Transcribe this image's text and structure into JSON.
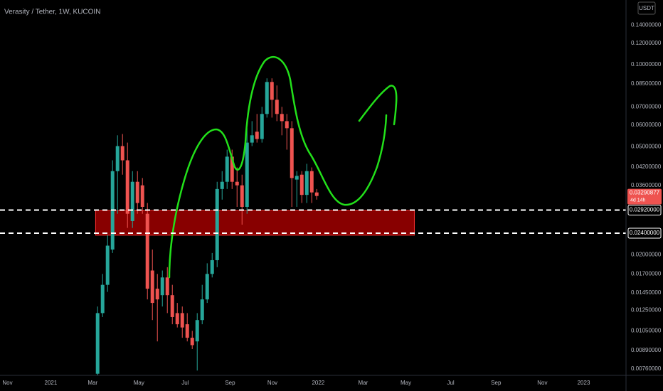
{
  "chart_data": {
    "type": "candlestick",
    "title": "Verasity / Tether, 1W, KUCOIN",
    "currency": "USDT",
    "up_color": "#26a69a",
    "down_color": "#ef5350",
    "log_scale": true,
    "grid": false,
    "open": [
      0.0073,
      0.0122,
      0.0155,
      0.0209,
      0.0406,
      0.0502,
      0.0445,
      0.0266,
      0.0371,
      0.036,
      0.0283,
      0.0175,
      0.015,
      0.0142,
      0.0165,
      0.0142,
      0.0122,
      0.0122,
      0.0111,
      0.0099,
      0.0096,
      0.0115,
      0.0137,
      0.017,
      0.0191,
      0.0349,
      0.0371,
      0.0459,
      0.0371,
      0.036,
      0.03,
      0.0517,
      0.0567,
      0.0533,
      0.0659,
      0.0864,
      0.0743,
      0.0659,
      0.062,
      0.0584,
      0.0378,
      0.0394,
      0.0332,
      0.0406,
      0.0339
    ],
    "high": [
      0.0129,
      0.017,
      0.0236,
      0.0445,
      0.055,
      0.0556,
      0.0517,
      0.0406,
      0.0406,
      0.0383,
      0.031,
      0.0209,
      0.017,
      0.0175,
      0.018,
      0.0155,
      0.0133,
      0.0129,
      0.0122,
      0.0105,
      0.0122,
      0.0155,
      0.0186,
      0.0203,
      0.0371,
      0.0406,
      0.0487,
      0.0487,
      0.0419,
      0.0394,
      0.0584,
      0.062,
      0.0659,
      0.07,
      0.0891,
      0.0891,
      0.0839,
      0.07,
      0.0659,
      0.062,
      0.0406,
      0.0406,
      0.0432,
      0.0419,
      0.0349
    ],
    "low": [
      0.0072,
      0.0118,
      0.0146,
      0.0203,
      0.0283,
      0.0394,
      0.0251,
      0.0251,
      0.0283,
      0.0283,
      0.0137,
      0.0115,
      0.0096,
      0.0129,
      0.0122,
      0.0111,
      0.0108,
      0.0099,
      0.0096,
      0.009,
      0.0075,
      0.0111,
      0.0133,
      0.0165,
      0.018,
      0.0319,
      0.0349,
      0.0349,
      0.03,
      0.0258,
      0.0283,
      0.0502,
      0.0517,
      0.0517,
      0.0639,
      0.0639,
      0.062,
      0.055,
      0.0487,
      0.03,
      0.03,
      0.031,
      0.031,
      0.031,
      0.0319
    ],
    "close": [
      0.0122,
      0.0155,
      0.0216,
      0.0406,
      0.0502,
      0.0445,
      0.0283,
      0.0371,
      0.031,
      0.03,
      0.015,
      0.0133,
      0.0137,
      0.0165,
      0.0142,
      0.0118,
      0.0111,
      0.0108,
      0.0099,
      0.0093,
      0.0115,
      0.0137,
      0.017,
      0.0191,
      0.0349,
      0.0371,
      0.0459,
      0.0371,
      0.036,
      0.03,
      0.0517,
      0.055,
      0.0533,
      0.0659,
      0.0864,
      0.0743,
      0.0659,
      0.062,
      0.0584,
      0.0383,
      0.039,
      0.0332,
      0.0406,
      0.0339,
      0.03290877
    ],
    "countdown": "4d 14h",
    "ylim": [
      0.0072,
      0.173
    ],
    "yticks": [
      {
        "value": 0.14,
        "label": "0.14000000"
      },
      {
        "value": 0.12,
        "label": "0.12000000"
      },
      {
        "value": 0.1,
        "label": "0.10000000"
      },
      {
        "value": 0.085,
        "label": "0.08500000"
      },
      {
        "value": 0.07,
        "label": "0.07000000"
      },
      {
        "value": 0.06,
        "label": "0.06000000"
      },
      {
        "value": 0.05,
        "label": "0.05000000"
      },
      {
        "value": 0.042,
        "label": "0.04200000"
      },
      {
        "value": 0.036,
        "label": "0.03600000"
      },
      {
        "value": 0.02,
        "label": "0.02000000"
      },
      {
        "value": 0.017,
        "label": "0.01700000"
      },
      {
        "value": 0.0145,
        "label": "0.01450000"
      },
      {
        "value": 0.0125,
        "label": "0.01250000"
      },
      {
        "value": 0.0105,
        "label": "0.01050000"
      },
      {
        "value": 0.0089,
        "label": "0.00890000"
      },
      {
        "value": 0.0076,
        "label": "0.00760000"
      }
    ],
    "hlines": [
      {
        "value": 0.0292,
        "label": "0.02920000"
      },
      {
        "value": 0.024,
        "label": "0.02400000"
      }
    ],
    "zone": {
      "color": "#a00000",
      "x": [
        -0.4,
        63.6
      ],
      "y": [
        0.0236,
        0.0291
      ]
    },
    "xlim": [
      -19.6,
      106.1
    ],
    "xticks": [
      {
        "value": -18.1,
        "label": "Nov"
      },
      {
        "value": -9.4,
        "label": "2021"
      },
      {
        "value": -1.0,
        "label": "Mar"
      },
      {
        "value": 8.3,
        "label": "May"
      },
      {
        "value": 17.6,
        "label": "Jul"
      },
      {
        "value": 26.6,
        "label": "Sep"
      },
      {
        "value": 35.1,
        "label": "Nov"
      },
      {
        "value": 44.3,
        "label": "2022"
      },
      {
        "value": 53.3,
        "label": "Mar"
      },
      {
        "value": 61.9,
        "label": "May"
      },
      {
        "value": 70.9,
        "label": "Jul"
      },
      {
        "value": 80.0,
        "label": "Sep"
      },
      {
        "value": 89.3,
        "label": "Nov"
      },
      {
        "value": 97.6,
        "label": "2023"
      }
    ]
  }
}
